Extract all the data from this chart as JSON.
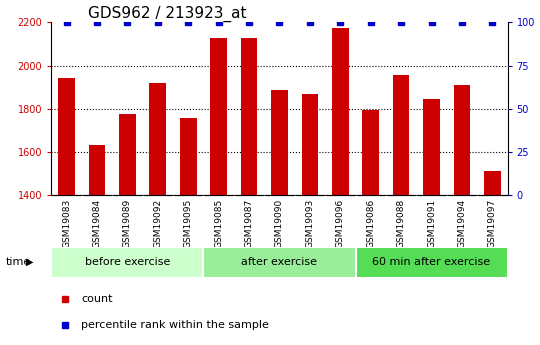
{
  "title": "GDS962 / 213923_at",
  "samples": [
    "GSM19083",
    "GSM19084",
    "GSM19089",
    "GSM19092",
    "GSM19095",
    "GSM19085",
    "GSM19087",
    "GSM19090",
    "GSM19093",
    "GSM19096",
    "GSM19086",
    "GSM19088",
    "GSM19091",
    "GSM19094",
    "GSM19097"
  ],
  "counts": [
    1940,
    1630,
    1775,
    1920,
    1755,
    2130,
    2130,
    1885,
    1870,
    2175,
    1795,
    1955,
    1845,
    1910,
    1510
  ],
  "percentile": [
    100,
    100,
    100,
    100,
    100,
    100,
    100,
    100,
    100,
    100,
    100,
    100,
    100,
    100,
    100
  ],
  "groups": [
    {
      "label": "before exercise",
      "start": 0,
      "end": 5,
      "color": "#ccffcc"
    },
    {
      "label": "after exercise",
      "start": 5,
      "end": 10,
      "color": "#99ee99"
    },
    {
      "label": "60 min after exercise",
      "start": 10,
      "end": 15,
      "color": "#55dd55"
    }
  ],
  "bar_color": "#cc0000",
  "percentile_color": "#0000cc",
  "ylim_left": [
    1400,
    2200
  ],
  "ylim_right": [
    0,
    100
  ],
  "yticks_left": [
    1400,
    1600,
    1800,
    2000,
    2200
  ],
  "yticks_right": [
    0,
    25,
    50,
    75,
    100
  ],
  "grid_values": [
    1600,
    1800,
    2000
  ],
  "bar_width": 0.55,
  "tick_bg_color": "#c8c8c8",
  "title_fontsize": 11,
  "tick_fontsize": 7,
  "sample_fontsize": 6.5,
  "group_fontsize": 8,
  "legend_fontsize": 8
}
